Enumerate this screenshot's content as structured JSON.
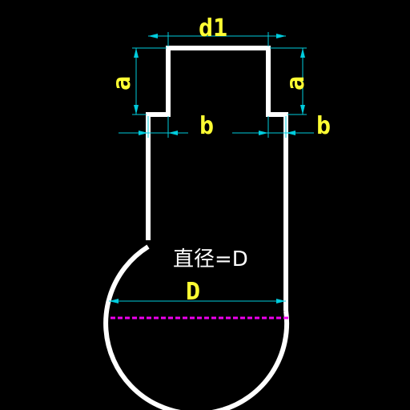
{
  "labels": {
    "d1": "d1",
    "a_left": "a",
    "a_right": "a",
    "b_left": "b",
    "b_right": "b",
    "diameter_note": "直径=D",
    "D": "D"
  },
  "colors": {
    "background": "#000000",
    "outline": "#ffffff",
    "dimension": "#00ccdd",
    "label": "#ffff33",
    "center_line": "#ee00ee"
  }
}
